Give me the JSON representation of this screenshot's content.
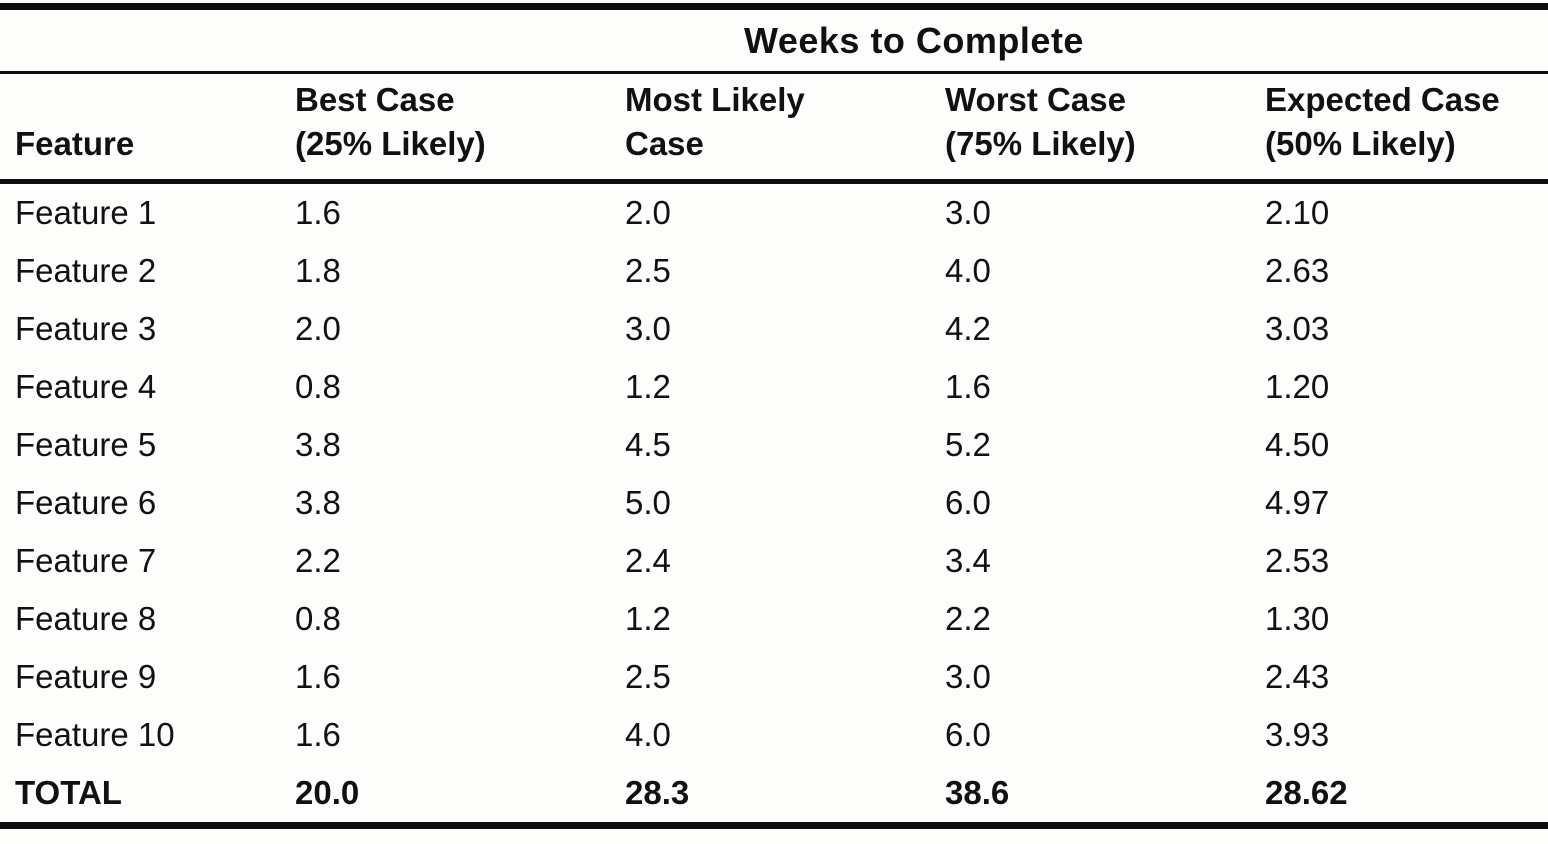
{
  "table": {
    "spanning_header": "Weeks to Complete",
    "columns": [
      {
        "label": "Feature",
        "sublabel": ""
      },
      {
        "label": "Best Case",
        "sublabel": "(25% Likely)"
      },
      {
        "label": "Most Likely",
        "sublabel": "Case"
      },
      {
        "label": "Worst Case",
        "sublabel": "(75% Likely)"
      },
      {
        "label": "Expected Case",
        "sublabel": "(50% Likely)"
      }
    ],
    "rows": [
      {
        "feature": "Feature 1",
        "best": "1.6",
        "likely": "2.0",
        "worst": "3.0",
        "expected": "2.10"
      },
      {
        "feature": "Feature 2",
        "best": "1.8",
        "likely": "2.5",
        "worst": "4.0",
        "expected": "2.63"
      },
      {
        "feature": "Feature 3",
        "best": "2.0",
        "likely": "3.0",
        "worst": "4.2",
        "expected": "3.03"
      },
      {
        "feature": "Feature 4",
        "best": "0.8",
        "likely": "1.2",
        "worst": "1.6",
        "expected": "1.20"
      },
      {
        "feature": "Feature 5",
        "best": "3.8",
        "likely": "4.5",
        "worst": "5.2",
        "expected": "4.50"
      },
      {
        "feature": "Feature 6",
        "best": "3.8",
        "likely": "5.0",
        "worst": "6.0",
        "expected": "4.97"
      },
      {
        "feature": "Feature 7",
        "best": "2.2",
        "likely": "2.4",
        "worst": "3.4",
        "expected": "2.53"
      },
      {
        "feature": "Feature 8",
        "best": "0.8",
        "likely": "1.2",
        "worst": "2.2",
        "expected": "1.30"
      },
      {
        "feature": "Feature 9",
        "best": "1.6",
        "likely": "2.5",
        "worst": "3.0",
        "expected": "2.43"
      },
      {
        "feature": "Feature 10",
        "best": "1.6",
        "likely": "4.0",
        "worst": "6.0",
        "expected": "3.93"
      }
    ],
    "total": {
      "feature": "TOTAL",
      "best": "20.0",
      "likely": "28.3",
      "worst": "38.6",
      "expected": "28.62"
    }
  },
  "chart_data": {
    "type": "table",
    "title": "Weeks to Complete",
    "columns": [
      "Feature",
      "Best Case (25% Likely)",
      "Most Likely Case",
      "Worst Case (75% Likely)",
      "Expected Case (50% Likely)"
    ],
    "rows": [
      [
        "Feature 1",
        1.6,
        2.0,
        3.0,
        2.1
      ],
      [
        "Feature 2",
        1.8,
        2.5,
        4.0,
        2.63
      ],
      [
        "Feature 3",
        2.0,
        3.0,
        4.2,
        3.03
      ],
      [
        "Feature 4",
        0.8,
        1.2,
        1.6,
        1.2
      ],
      [
        "Feature 5",
        3.8,
        4.5,
        5.2,
        4.5
      ],
      [
        "Feature 6",
        3.8,
        5.0,
        6.0,
        4.97
      ],
      [
        "Feature 7",
        2.2,
        2.4,
        3.4,
        2.53
      ],
      [
        "Feature 8",
        0.8,
        1.2,
        2.2,
        1.3
      ],
      [
        "Feature 9",
        1.6,
        2.5,
        3.0,
        2.43
      ],
      [
        "Feature 10",
        1.6,
        4.0,
        6.0,
        3.93
      ],
      [
        "TOTAL",
        20.0,
        28.3,
        38.6,
        28.62
      ]
    ]
  }
}
